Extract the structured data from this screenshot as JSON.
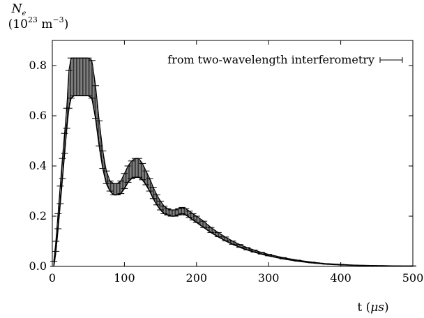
{
  "chart_data": {
    "type": "line",
    "title": "",
    "ylabel_symbol": "N",
    "ylabel_subscript": "e",
    "ylabel_units_prefix": "(10",
    "ylabel_units_exp": "23",
    "ylabel_units_mid": " m",
    "ylabel_units_exp2": "−3",
    "ylabel_units_suffix": ")",
    "xlabel_prefix": "t (",
    "xlabel_mu": "μs",
    "xlabel_suffix": ")",
    "xlim": [
      0,
      500
    ],
    "ylim": [
      0,
      0.9
    ],
    "x_ticks": [
      0,
      100,
      200,
      300,
      400,
      500
    ],
    "x_tick_labels": [
      "0",
      "100",
      "200",
      "300",
      "400",
      "500"
    ],
    "y_ticks": [
      0,
      0.2,
      0.4,
      0.6,
      0.8
    ],
    "y_tick_labels": [
      "0.0",
      "0.2",
      "0.4",
      "0.6",
      "0.8"
    ],
    "grid": false,
    "legend_position": "top-right",
    "series": [
      {
        "name": "from two-wavelength interferometry",
        "style": "error bars",
        "x": [
          2,
          5,
          8,
          11,
          14,
          17,
          20,
          23,
          26,
          30,
          35,
          40,
          45,
          50,
          55,
          60,
          65,
          70,
          75,
          80,
          85,
          90,
          95,
          100,
          105,
          110,
          115,
          120,
          125,
          130,
          135,
          140,
          145,
          150,
          155,
          160,
          165,
          170,
          175,
          180,
          185,
          190,
          195,
          200,
          210,
          220,
          230,
          240,
          250,
          260,
          270,
          280,
          290,
          300,
          320,
          340,
          360,
          380,
          400,
          420,
          440,
          460,
          480,
          500
        ],
        "y_low": [
          0.0,
          0.06,
          0.15,
          0.25,
          0.35,
          0.45,
          0.55,
          0.63,
          0.67,
          0.68,
          0.68,
          0.68,
          0.68,
          0.68,
          0.67,
          0.59,
          0.48,
          0.39,
          0.33,
          0.3,
          0.285,
          0.285,
          0.29,
          0.31,
          0.335,
          0.35,
          0.355,
          0.355,
          0.345,
          0.325,
          0.3,
          0.27,
          0.245,
          0.225,
          0.21,
          0.205,
          0.2,
          0.2,
          0.205,
          0.21,
          0.205,
          0.195,
          0.185,
          0.175,
          0.155,
          0.135,
          0.118,
          0.102,
          0.088,
          0.076,
          0.066,
          0.057,
          0.049,
          0.042,
          0.03,
          0.021,
          0.014,
          0.009,
          0.006,
          0.004,
          0.003,
          0.002,
          0.001,
          0.001
        ],
        "y_high": [
          0.02,
          0.1,
          0.21,
          0.32,
          0.43,
          0.53,
          0.63,
          0.78,
          0.83,
          0.83,
          0.83,
          0.83,
          0.83,
          0.83,
          0.82,
          0.72,
          0.58,
          0.46,
          0.38,
          0.34,
          0.33,
          0.33,
          0.34,
          0.37,
          0.4,
          0.42,
          0.43,
          0.43,
          0.41,
          0.38,
          0.35,
          0.315,
          0.285,
          0.26,
          0.24,
          0.23,
          0.225,
          0.225,
          0.23,
          0.235,
          0.23,
          0.22,
          0.21,
          0.2,
          0.18,
          0.155,
          0.135,
          0.117,
          0.101,
          0.087,
          0.075,
          0.065,
          0.056,
          0.048,
          0.035,
          0.025,
          0.017,
          0.011,
          0.008,
          0.005,
          0.004,
          0.003,
          0.002,
          0.002
        ]
      }
    ]
  },
  "colors": {
    "axis": "#000000",
    "data": "#000000",
    "background": "#ffffff"
  }
}
